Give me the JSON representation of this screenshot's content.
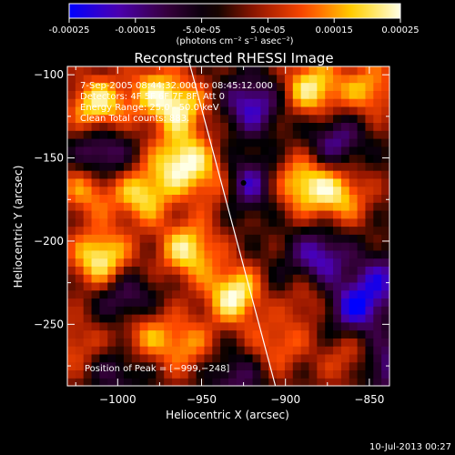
{
  "colorbar": {
    "tick_labels": [
      "-0.00025",
      "-0.00015",
      "-5.0e-05",
      "5.0e-05",
      "0.00015",
      "0.00025"
    ],
    "tick_values": [
      -0.00025,
      -0.00015,
      -5e-05,
      5e-05,
      0.00015,
      0.00025
    ],
    "range": [
      -0.00025,
      0.00025
    ],
    "units_text": "(photons cm⁻² s⁻¹ asec⁻²)",
    "colors": [
      "#0000ff",
      "#4b00b4",
      "#3a0040",
      "#000000",
      "#9b1800",
      "#ff4a00",
      "#ffd100",
      "#ffffe6"
    ]
  },
  "chart_data": {
    "type": "heatmap",
    "title": "Reconstructed RHESSI Image",
    "xlabel": "Heliocentric X (arcsec)",
    "ylabel": "Heliocentric Y (arcsec)",
    "xlim": [
      -1030,
      -838
    ],
    "ylim": [
      -287,
      -95
    ],
    "x_ticks": [
      -1000,
      -950,
      -900,
      -850
    ],
    "x_tick_labels": [
      "−1000",
      "−950",
      "−900",
      "−850"
    ],
    "y_ticks": [
      -100,
      -150,
      -200,
      -250
    ],
    "y_tick_labels": [
      "−100",
      "−150",
      "−200",
      "−250"
    ],
    "grid": false,
    "annotations": [
      "7-Sep-2005 08:44:32.000 to 08:45:12.000",
      "Detectors: 4F 5F 6F 7F 8F, Att 0",
      "Energy Range: 25.0 - 50.0 keV",
      "Clean     Total counts: 883."
    ],
    "peak_label": "Position of Peak = [−999,−248]",
    "peak_position": [
      -999,
      -248
    ],
    "limb_line": [
      [
        -958,
        -90
      ],
      [
        -906,
        -287
      ]
    ],
    "pixel_grid": [
      40,
      40
    ],
    "hot_regions": [
      {
        "x": -1012,
        "y": -118,
        "value": 0.00022
      },
      {
        "x": -978,
        "y": -110,
        "value": 0.00016
      },
      {
        "x": -962,
        "y": -120,
        "value": 0.00018
      },
      {
        "x": -884,
        "y": -108,
        "value": 0.00022
      },
      {
        "x": -850,
        "y": -108,
        "value": 0.00016
      },
      {
        "x": -962,
        "y": -152,
        "value": 0.00024
      },
      {
        "x": -938,
        "y": -165,
        "value": 0.00018
      },
      {
        "x": -985,
        "y": -172,
        "value": 0.0002
      },
      {
        "x": -1010,
        "y": -210,
        "value": 0.00024
      },
      {
        "x": -1018,
        "y": -168,
        "value": 0.00016
      },
      {
        "x": -958,
        "y": -205,
        "value": 0.00022
      },
      {
        "x": -930,
        "y": -232,
        "value": 0.00025
      },
      {
        "x": -890,
        "y": -165,
        "value": 0.0002
      },
      {
        "x": -868,
        "y": -172,
        "value": 0.00018
      },
      {
        "x": -892,
        "y": -232,
        "value": 0.00017
      },
      {
        "x": -985,
        "y": -255,
        "value": 0.00014
      },
      {
        "x": -960,
        "y": -262,
        "value": 0.00014
      },
      {
        "x": -905,
        "y": -262,
        "value": 0.00012
      },
      {
        "x": -860,
        "y": -270,
        "value": 0.00011
      },
      {
        "x": -1025,
        "y": -262,
        "value": 0.0001
      }
    ],
    "cold_regions": [
      {
        "x": -920,
        "y": -118,
        "value": -0.0002
      },
      {
        "x": -925,
        "y": -165,
        "value": -0.00025
      },
      {
        "x": -1010,
        "y": -148,
        "value": -0.00018
      },
      {
        "x": -870,
        "y": -140,
        "value": -0.00016
      },
      {
        "x": -995,
        "y": -235,
        "value": -0.00015
      },
      {
        "x": -880,
        "y": -210,
        "value": -0.0002
      },
      {
        "x": -900,
        "y": -230,
        "value": -0.00012
      },
      {
        "x": -930,
        "y": -282,
        "value": -0.00012
      },
      {
        "x": -858,
        "y": -240,
        "value": -0.00022
      },
      {
        "x": -842,
        "y": -222,
        "value": -0.00015
      },
      {
        "x": -1000,
        "y": -278,
        "value": -0.0001
      },
      {
        "x": -840,
        "y": -275,
        "value": -0.00018
      }
    ]
  },
  "footer": {
    "timestamp": "10-Jul-2013 00:27"
  }
}
